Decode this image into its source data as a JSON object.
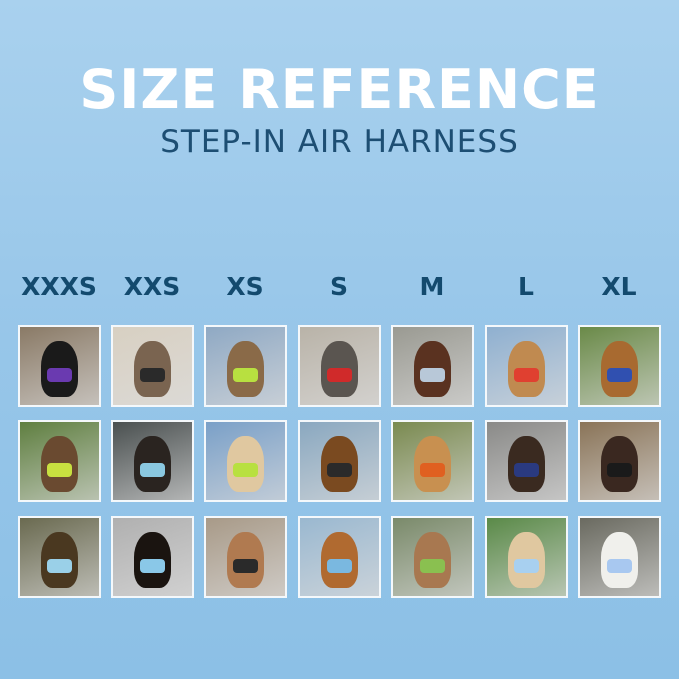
{
  "header": {
    "title": "SIZE REFERENCE",
    "subtitle": "STEP-IN AIR HARNESS"
  },
  "colors": {
    "title": "#ffffff",
    "subtitle": "#1d4e73",
    "size_label": "#134a6e",
    "background": "#9ccae9"
  },
  "sizes": [
    "XXXS",
    "XXS",
    "XS",
    "S",
    "M",
    "L",
    "XL"
  ],
  "photos": [
    [
      {
        "bg": "#8a7a66",
        "pet": "#1a1a1a",
        "harness": "#6a3ab0"
      },
      {
        "bg": "#d8d0c2",
        "pet": "#7a6450",
        "harness": "#2a2a2a"
      },
      {
        "bg": "#8fa9c4",
        "pet": "#8a6a48",
        "harness": "#b8e040"
      },
      {
        "bg": "#b9b3a8",
        "pet": "#5a5550",
        "harness": "#d02a2a"
      },
      {
        "bg": "#9a9a92",
        "pet": "#5a3220",
        "harness": "#b8c8d8"
      },
      {
        "bg": "#8fb0d0",
        "pet": "#c08a50",
        "harness": "#e04030"
      },
      {
        "bg": "#6a8a48",
        "pet": "#a86a30",
        "harness": "#3050b0"
      }
    ],
    [
      {
        "bg": "#5f7f40",
        "pet": "#6a4a30",
        "harness": "#c8e040"
      },
      {
        "bg": "#4a5050",
        "pet": "#2a2420",
        "harness": "#8ac8e0"
      },
      {
        "bg": "#7aa0c8",
        "pet": "#e0c8a0",
        "harness": "#b8e040"
      },
      {
        "bg": "#8aa8c0",
        "pet": "#7a4a20",
        "harness": "#2a2a2a"
      },
      {
        "bg": "#7a8a50",
        "pet": "#c89050",
        "harness": "#e06020"
      },
      {
        "bg": "#8a8a88",
        "pet": "#3a2a20",
        "harness": "#2a3a80"
      },
      {
        "bg": "#8a7458",
        "pet": "#3a2820",
        "harness": "#1a1a1a"
      }
    ],
    [
      {
        "bg": "#6a6a50",
        "pet": "#4a3820",
        "harness": "#9ad0e8"
      },
      {
        "bg": "#b0b0b0",
        "pet": "#1a1410",
        "harness": "#8ac8e8"
      },
      {
        "bg": "#a89a88",
        "pet": "#b07a50",
        "harness": "#2a2a2a"
      },
      {
        "bg": "#9ab8d0",
        "pet": "#b06a30",
        "harness": "#7ab8e0"
      },
      {
        "bg": "#7a8a6a",
        "pet": "#a87850",
        "harness": "#8ac050"
      },
      {
        "bg": "#5a8a48",
        "pet": "#e0c8a0",
        "harness": "#a8d0f0"
      },
      {
        "bg": "#6a6a60",
        "pet": "#f0f0ec",
        "harness": "#a8c8f0"
      }
    ]
  ]
}
